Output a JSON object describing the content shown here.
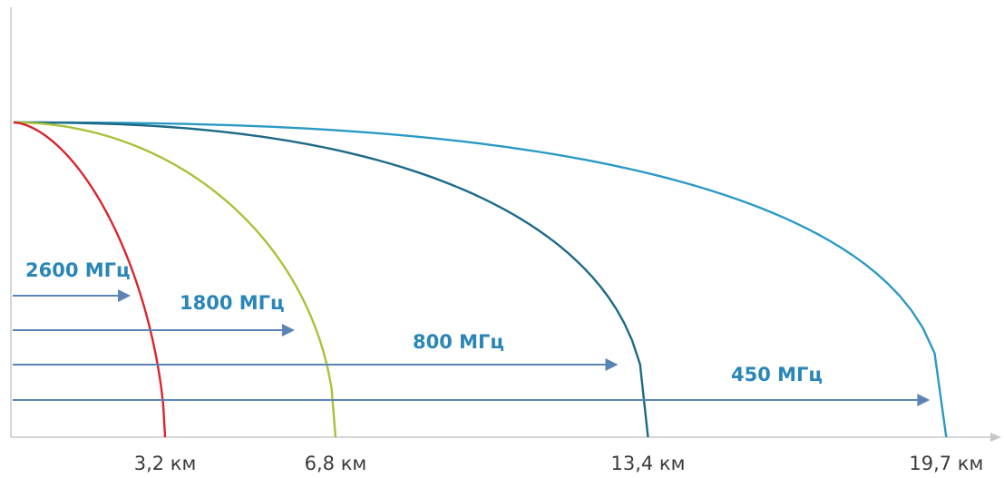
{
  "chart_data": {
    "type": "line",
    "title": "",
    "xlabel": "",
    "ylabel": "",
    "xlim": [
      0,
      20.5
    ],
    "grid": false,
    "legend": "none",
    "tick_labels": [
      "3,2 км",
      "6,8 км",
      "13,4 км",
      "19,7 км"
    ],
    "series": [
      {
        "name": "2600 МГц",
        "color": "#d8262c",
        "range_km": 3.2,
        "tick_label": "3,2 км",
        "curve_exponent": 1.7
      },
      {
        "name": "1800 МГц",
        "color": "#a8c23a",
        "range_km": 6.8,
        "tick_label": "6,8 км",
        "curve_exponent": 2.0
      },
      {
        "name": "800 МГц",
        "color": "#1d6a86",
        "range_km": 13.4,
        "tick_label": "13,4 км",
        "curve_exponent": 2.4
      },
      {
        "name": "450 МГц",
        "color": "#2a9ac4",
        "range_km": 19.7,
        "tick_label": "19,7 км",
        "curve_exponent": 2.6
      }
    ]
  },
  "colors": {
    "axis": "#c8c8c8",
    "arrow": "#5b84b6",
    "label": "#2a86b8",
    "tick_text": "#3a3a3a"
  }
}
